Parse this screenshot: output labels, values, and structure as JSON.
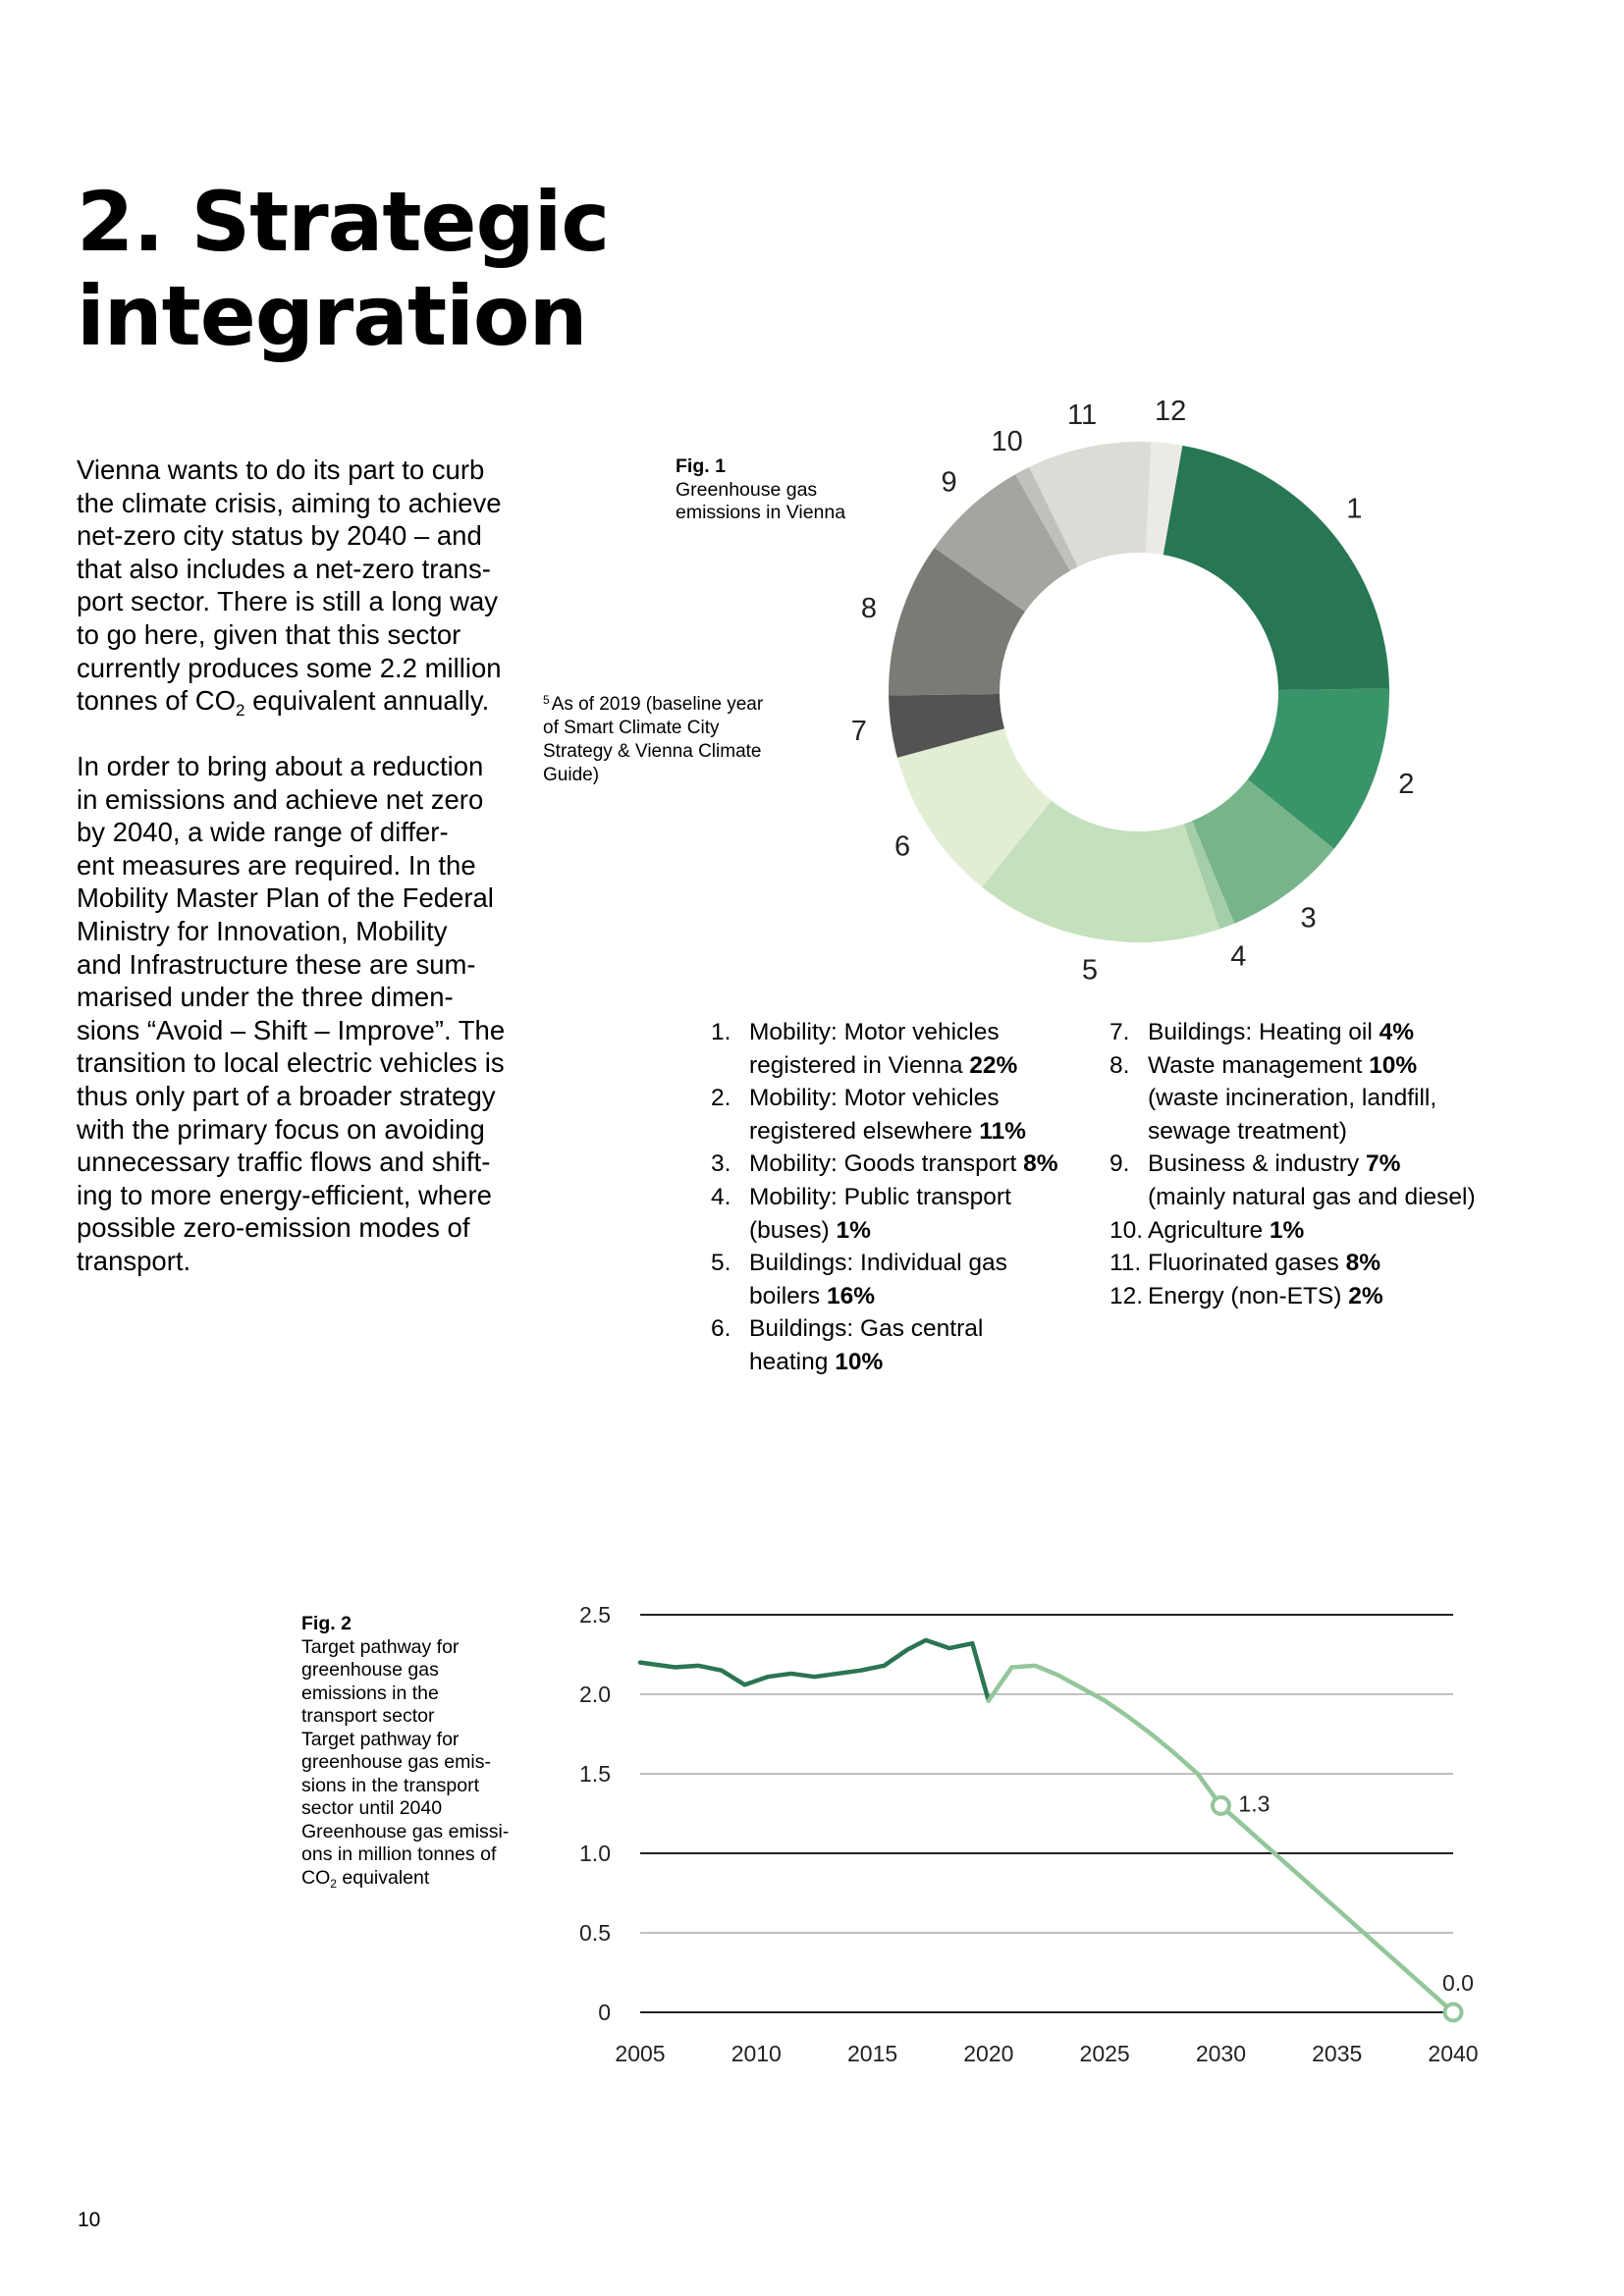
{
  "heading": {
    "line1": "2. Strategic",
    "line2": "integration"
  },
  "intro": {
    "p1_lines": [
      "Vienna wants to do its part to curb",
      "the climate crisis, aiming to achieve",
      "net-zero city status by 2040 – and",
      "that also includes a net-zero trans-",
      "port sector. There is still a long way",
      "to go here, given that this sector",
      "currently produces some 2.2 million"
    ],
    "p1_last_before": "tonnes of CO",
    "p1_last_sub": "2",
    "p1_last_after": " equivalent annually.",
    "p2_lines": [
      "In order to bring about a reduction",
      "in emissions and achieve net zero",
      "by 2040, a wide range of differ-",
      "ent measures are required. In the",
      "Mobility Master Plan of the Federal",
      "Ministry for Innovation, Mobility",
      "and Infrastructure these are sum-",
      "marised under the three dimen-",
      "sions “Avoid – Shift – Improve”. The",
      "transition to local electric vehicles is",
      "thus only part of a broader strategy",
      "with the primary focus on avoiding",
      "unnecessary traffic flows and shift-",
      "ing to more energy-efficient, where",
      "possible zero-emission modes of",
      "transport."
    ]
  },
  "footnote": {
    "mark": "5",
    "text": "As of 2019 (baseline year of Smart Climate City Strategy & Vienna Climate Guide)"
  },
  "fig1": {
    "label": "Fig. 1",
    "caption": "Greenhouse gas emissions in Vienna"
  },
  "fig2": {
    "label": "Fig. 2",
    "caption_lines": [
      "Target pathway for",
      "greenhouse gas",
      "emissions in the",
      "transport sector",
      "Target pathway for",
      "greenhouse gas emis-",
      "sions in the transport",
      "sector until 2040",
      "Greenhouse gas emissi-",
      "ons in million tonnes of"
    ],
    "caption_last_before": "CO",
    "caption_last_sub": "2",
    "caption_last_after": " equivalent"
  },
  "legend_col1": [
    {
      "num": "1.",
      "lines": [
        "Mobility: Motor vehicles",
        "registered in Vienna"
      ],
      "pct": "22%"
    },
    {
      "num": "2.",
      "lines": [
        "Mobility: Motor vehicles",
        "registered elsewhere"
      ],
      "pct": "11%"
    },
    {
      "num": "3.",
      "lines": [
        "Mobility: Goods transport"
      ],
      "pct": "8%"
    },
    {
      "num": "4.",
      "lines": [
        "Mobility: Public transport",
        "(buses)"
      ],
      "pct": "1%"
    },
    {
      "num": "5.",
      "lines": [
        "Buildings: Individual gas",
        "boilers"
      ],
      "pct": "16%"
    },
    {
      "num": "6.",
      "lines": [
        "Buildings: Gas central",
        "heating"
      ],
      "pct": "10%"
    }
  ],
  "legend_col2": [
    {
      "num": "7.",
      "lines": [
        "Buildings: Heating oil"
      ],
      "pct": "4%",
      "after": []
    },
    {
      "num": "8.",
      "lines": [
        "Waste management"
      ],
      "pct": "10%",
      "after": [
        "(waste incineration, landfill,",
        "sewage treatment)"
      ]
    },
    {
      "num": "9.",
      "lines": [
        "Business & industry"
      ],
      "pct": "7%",
      "after": [
        "(mainly natural gas and diesel)"
      ]
    },
    {
      "num": "10.",
      "lines": [
        "Agriculture"
      ],
      "pct": "1%",
      "after": []
    },
    {
      "num": "11.",
      "lines": [
        "Fluorinated gases"
      ],
      "pct": "8%",
      "after": []
    },
    {
      "num": "12.",
      "lines": [
        "Energy (non-ETS)"
      ],
      "pct": "2%",
      "after": []
    }
  ],
  "chart_data": [
    {
      "type": "pie",
      "donut": true,
      "labels": [
        "1",
        "2",
        "3",
        "4",
        "5",
        "6",
        "7",
        "8",
        "9",
        "10",
        "11",
        "12"
      ],
      "values": [
        22,
        11,
        8,
        1,
        16,
        10,
        4,
        10,
        7,
        1,
        8,
        2
      ],
      "colors": [
        "#277754",
        "#3a9469",
        "#77b48a",
        "#a3cea7",
        "#c4e0bd",
        "#e2eed3",
        "#535353",
        "#7b7a75",
        "#a6a4a0",
        "#c2c0bb",
        "#dddbd5",
        "#eceae5"
      ]
    },
    {
      "type": "line",
      "ylim": [
        0,
        2.5
      ],
      "yticks": [
        "0",
        "0.5",
        "1.0",
        "1.5",
        "2.0",
        "2.5"
      ],
      "ytick_values": [
        0,
        0.5,
        1.0,
        1.5,
        2.0,
        2.5
      ],
      "xlim": [
        2005,
        2040
      ],
      "xticks": [
        "2005",
        "2010",
        "2015",
        "2020",
        "2025",
        "2030",
        "2035",
        "2040"
      ],
      "xtick_values": [
        2005,
        2010,
        2015,
        2020,
        2025,
        2030,
        2035,
        2040
      ],
      "series": [
        {
          "x": [
            2005,
            2006.5,
            2007.5,
            2008.5,
            2009.5,
            2010.5,
            2011.5,
            2012.5,
            2013.5,
            2014.5,
            2015.5,
            2016.5,
            2017.3,
            2018.3,
            2019.3,
            2020
          ],
          "y": [
            2.2,
            2.17,
            2.18,
            2.15,
            2.06,
            2.11,
            2.13,
            2.11,
            2.13,
            2.15,
            2.18,
            2.28,
            2.34,
            2.29,
            2.32,
            1.96
          ],
          "color": "#2b7552"
        },
        {
          "x": [
            2020,
            2021,
            2022,
            2023,
            2024,
            2025,
            2026,
            2027,
            2028,
            2029,
            2030,
            2040
          ],
          "y": [
            1.96,
            2.17,
            2.18,
            2.12,
            2.04,
            1.96,
            1.86,
            1.75,
            1.63,
            1.5,
            1.3,
            0.0
          ],
          "color": "#93c69a"
        }
      ],
      "annotations": [
        {
          "x": 2030,
          "y": 1.3,
          "text": "1.3"
        },
        {
          "x": 2040,
          "y": 0.0,
          "text": "0.0"
        }
      ]
    }
  ],
  "page_number": "10"
}
